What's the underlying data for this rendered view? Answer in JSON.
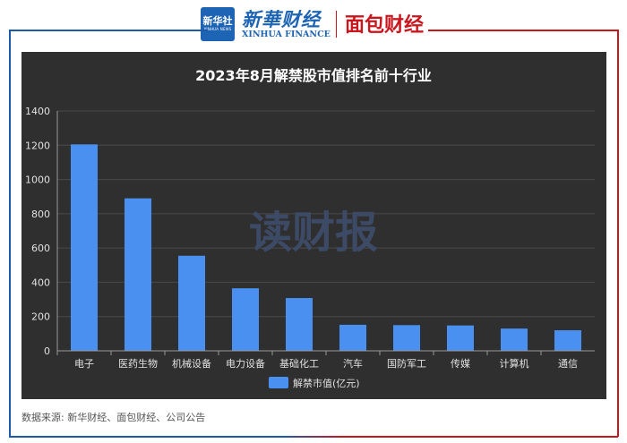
{
  "header": {
    "xinhua_badge_cn": "新华社",
    "xinhua_badge_en": "XINHUA NEWS",
    "xinhua_finance_cn": "新華财经",
    "xinhua_finance_en": "XINHUA FINANCE",
    "mianbao_name": "面包财经"
  },
  "footer": {
    "source": "数据来源: 新华财经、面包财经、公司公告"
  },
  "colors": {
    "bar": "#4a90f0",
    "panel_bg": "#2f2f2f",
    "grid": "#4a4a4a",
    "text": "#e0e0e0",
    "watermark": "#3d4a66"
  },
  "watermark": "读财报",
  "chart_data": {
    "type": "bar",
    "title": "2023年8月解禁股市值排名前十行业",
    "categories": [
      "电子",
      "医药生物",
      "机械设备",
      "电力设备",
      "基础化工",
      "汽车",
      "国防军工",
      "传媒",
      "计算机",
      "通信"
    ],
    "series": [
      {
        "name": "解禁市值(亿元)",
        "values": [
          1205,
          890,
          555,
          365,
          308,
          152,
          150,
          148,
          130,
          120
        ]
      }
    ],
    "ylim": [
      0,
      1400
    ],
    "yticks": [
      0,
      200,
      400,
      600,
      800,
      1000,
      1200,
      1400
    ],
    "grid": true,
    "legend": "bottom-center"
  }
}
